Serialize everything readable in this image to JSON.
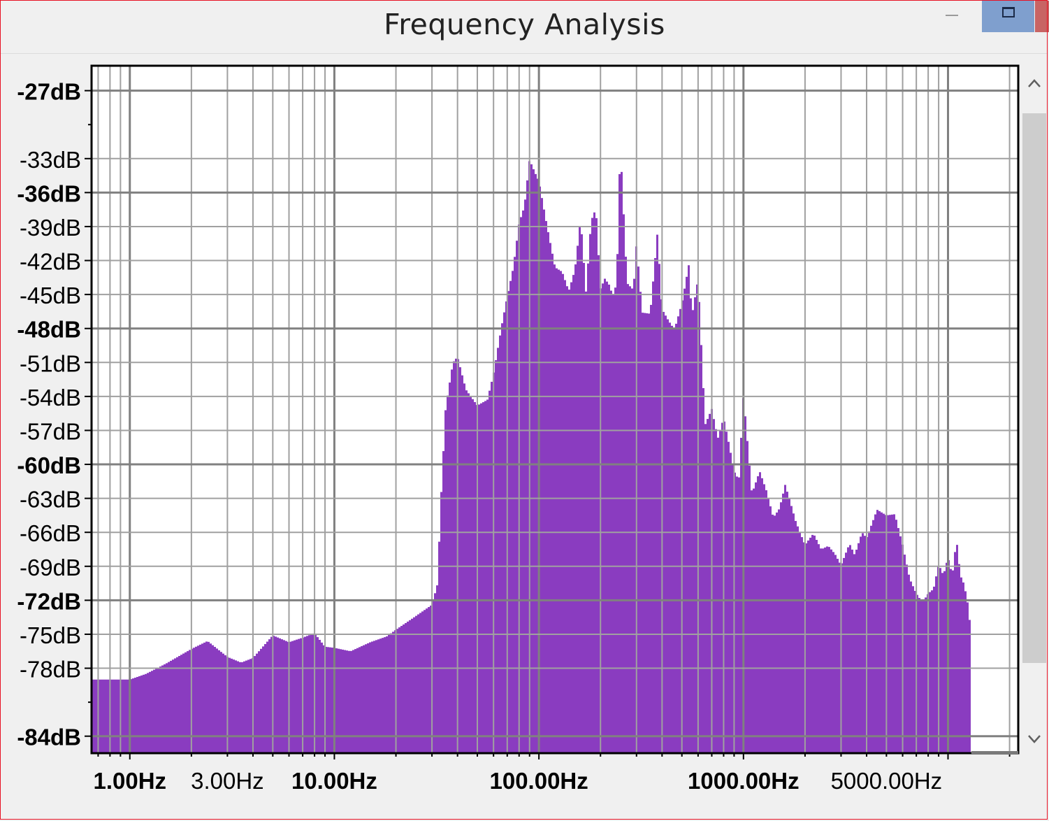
{
  "window": {
    "title": "Frequency Analysis"
  },
  "colors": {
    "bars": "#8a3cc0",
    "grid": "#a0a0a0",
    "plot_bg": "#ffffff"
  },
  "chart_data": {
    "type": "bar",
    "xscale": "log",
    "xlim": [
      0.65,
      22050
    ],
    "ylim": [
      -85.5,
      -24.8
    ],
    "grid": true,
    "x_ticks": [
      {
        "value": 1,
        "label": "1.00Hz",
        "bold": true
      },
      {
        "value": 3,
        "label": "3.00Hz",
        "bold": false
      },
      {
        "value": 10,
        "label": "10.00Hz",
        "bold": true
      },
      {
        "value": 100,
        "label": "100.00Hz",
        "bold": true
      },
      {
        "value": 1000,
        "label": "1000.00Hz",
        "bold": true
      },
      {
        "value": 5000,
        "label": "5000.00Hz",
        "bold": false
      }
    ],
    "y_ticks": [
      {
        "value": -27,
        "label": "-27dB",
        "bold": true
      },
      {
        "value": -33,
        "label": "-33dB",
        "bold": false
      },
      {
        "value": -36,
        "label": "-36dB",
        "bold": true
      },
      {
        "value": -39,
        "label": "-39dB",
        "bold": false
      },
      {
        "value": -42,
        "label": "-42dB",
        "bold": false
      },
      {
        "value": -45,
        "label": "-45dB",
        "bold": false
      },
      {
        "value": -48,
        "label": "-48dB",
        "bold": true
      },
      {
        "value": -51,
        "label": "-51dB",
        "bold": false
      },
      {
        "value": -54,
        "label": "-54dB",
        "bold": false
      },
      {
        "value": -57,
        "label": "-57dB",
        "bold": false
      },
      {
        "value": -60,
        "label": "-60dB",
        "bold": true
      },
      {
        "value": -63,
        "label": "-63dB",
        "bold": false
      },
      {
        "value": -66,
        "label": "-66dB",
        "bold": false
      },
      {
        "value": -69,
        "label": "-69dB",
        "bold": false
      },
      {
        "value": -72,
        "label": "-72dB",
        "bold": true
      },
      {
        "value": -75,
        "label": "-75dB",
        "bold": false
      },
      {
        "value": -78,
        "label": "-78dB",
        "bold": false
      },
      {
        "value": -84,
        "label": "-84dB",
        "bold": true
      }
    ],
    "spectrum": {
      "freq_hz": [
        0.68,
        1,
        1.2,
        1.5,
        2,
        2.4,
        3,
        3.5,
        4,
        5,
        6,
        7,
        8,
        9,
        10,
        12,
        15,
        18,
        20,
        25,
        30,
        32,
        33,
        35,
        38,
        40,
        44,
        50,
        56,
        60,
        66,
        70,
        75,
        80,
        85,
        90,
        95,
        100,
        110,
        120,
        130,
        140,
        150,
        160,
        170,
        180,
        190,
        200,
        210,
        220,
        230,
        240,
        250,
        270,
        290,
        300,
        320,
        350,
        380,
        400,
        430,
        460,
        500,
        540,
        560,
        600,
        650,
        700,
        750,
        800,
        850,
        900,
        950,
        1000,
        1100,
        1200,
        1300,
        1400,
        1500,
        1600,
        1700,
        1800,
        1900,
        2000,
        2200,
        2400,
        2600,
        2800,
        3000,
        3300,
        3500,
        3800,
        4000,
        4500,
        5000,
        5500,
        6000,
        6500,
        7000,
        7500,
        8000,
        8500,
        9000,
        9500,
        10000,
        10500,
        11000,
        11500,
        12000,
        12500,
        13000
      ],
      "level_db": [
        -79,
        -79,
        -78.5,
        -77.6,
        -76.3,
        -75.6,
        -77,
        -77.5,
        -77.1,
        -75.1,
        -75.7,
        -75.3,
        -74.9,
        -76.1,
        -76.2,
        -76.5,
        -75.7,
        -75.2,
        -74.6,
        -73.4,
        -72.4,
        -70.5,
        -64,
        -55,
        -51,
        -50.5,
        -53.4,
        -54.8,
        -54.3,
        -52,
        -47.6,
        -45.2,
        -42.6,
        -38.7,
        -37.2,
        -33.1,
        -34.1,
        -35,
        -39.1,
        -42.6,
        -43,
        -44.7,
        -42.8,
        -38.3,
        -44.8,
        -38.5,
        -37.4,
        -44.5,
        -43.6,
        -44.1,
        -45.1,
        -44,
        -31.8,
        -44,
        -44.6,
        -40.5,
        -46.6,
        -46.7,
        -39.5,
        -46.3,
        -47.3,
        -48.1,
        -45.8,
        -42.4,
        -46.9,
        -43.6,
        -56.5,
        -55.1,
        -57.7,
        -55.9,
        -58.2,
        -60.6,
        -61.4,
        -53.8,
        -62.6,
        -60.6,
        -62.4,
        -64.7,
        -63.9,
        -61.8,
        -63.4,
        -65,
        -66.1,
        -67.1,
        -66.1,
        -67.5,
        -67.2,
        -67.9,
        -68.9,
        -67,
        -68,
        -66,
        -66.5,
        -64,
        -64.5,
        -64.4,
        -67.1,
        -70.1,
        -71.4,
        -72.2,
        -71.4,
        -71,
        -68.8,
        -69.8,
        -68.2,
        -69.8,
        -66.6,
        -69.8,
        -70.6,
        -72.3,
        -75
      ]
    }
  }
}
